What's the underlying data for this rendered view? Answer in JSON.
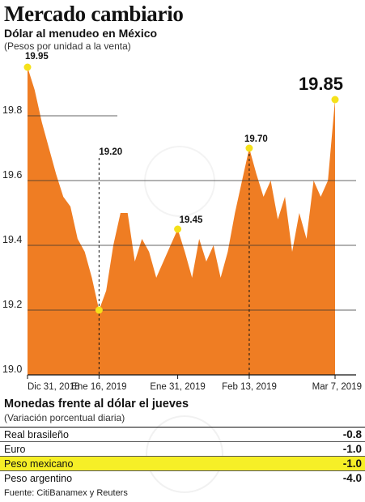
{
  "title": "Mercado cambiario",
  "subtitle": "Dólar al menudeo en México",
  "note": "(Pesos por unidad a la venta)",
  "chart_data": {
    "type": "area",
    "title": "Dólar al menudeo en México",
    "ylabel": "(Pesos por unidad a la venta)",
    "ylim": [
      19.0,
      19.95
    ],
    "y_ticks": [
      "19.0",
      "19.2",
      "19.4",
      "19.6",
      "19.8"
    ],
    "x_ticks": [
      "Dic 31, 2018",
      "Ene 16, 2019",
      "Ene 31, 2019",
      "Feb 13, 2019",
      "Mar 7, 2019"
    ],
    "series": [
      {
        "values": [
          19.95,
          19.88,
          19.78,
          19.7,
          19.62,
          19.55,
          19.52,
          19.42,
          19.38,
          19.3,
          19.2,
          19.26,
          19.4,
          19.5,
          19.5,
          19.35,
          19.42,
          19.38,
          19.3,
          19.35,
          19.4,
          19.45,
          19.38,
          19.3,
          19.42,
          19.35,
          19.4,
          19.3,
          19.38,
          19.5,
          19.6,
          19.7,
          19.62,
          19.55,
          19.6,
          19.48,
          19.55,
          19.38,
          19.5,
          19.42,
          19.6,
          19.55,
          19.6,
          19.85
        ]
      }
    ],
    "annotations": [
      {
        "label": "19.95"
      },
      {
        "label": "19.20"
      },
      {
        "label": "19.45"
      },
      {
        "label": "19.70"
      },
      {
        "label": "19.85"
      }
    ],
    "fill_color": "#ef7d23",
    "marker_color": "#f5e11a"
  },
  "table": {
    "title": "Monedas frente al dólar el jueves",
    "note": "(Variación porcentual diaria)",
    "rows": [
      {
        "name": "Real brasileño",
        "value": "-0.8",
        "highlight": false
      },
      {
        "name": "Euro",
        "value": "-1.0",
        "highlight": false
      },
      {
        "name": "Peso mexicano",
        "value": "-1.0",
        "highlight": true
      },
      {
        "name": "Peso argentino",
        "value": "-4.0",
        "highlight": false
      }
    ]
  },
  "source": "Fuente: CitiBanamex y Reuters"
}
